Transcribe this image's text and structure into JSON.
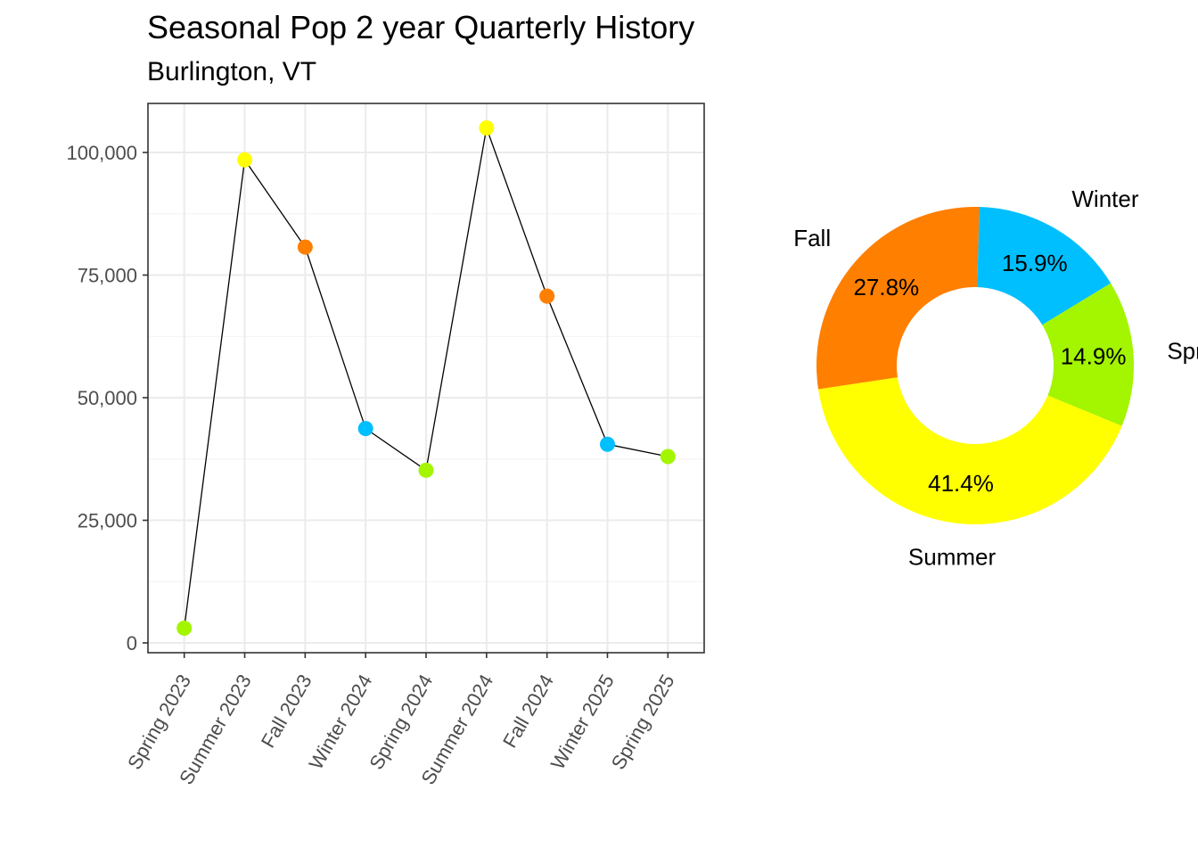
{
  "title": "Seasonal Pop 2 year Quarterly History",
  "subtitle": "Burlington, VT",
  "chart_data": [
    {
      "type": "line",
      "categories": [
        "Spring 2023",
        "Summer 2023",
        "Fall 2023",
        "Winter 2024",
        "Spring 2024",
        "Summer 2024",
        "Fall 2024",
        "Winter 2025",
        "Spring 2025"
      ],
      "values": [
        3000,
        98500,
        80700,
        43700,
        35200,
        105000,
        70700,
        40500,
        38000
      ],
      "point_seasons": [
        "Spring",
        "Summer",
        "Fall",
        "Winter",
        "Spring",
        "Summer",
        "Fall",
        "Winter",
        "Spring"
      ],
      "y_ticks": [
        0,
        25000,
        50000,
        75000,
        100000
      ],
      "y_tick_labels": [
        "0",
        "25,000",
        "50,000",
        "75,000",
        "100,000"
      ],
      "ylim": [
        -2000,
        110000
      ],
      "xlabel": "",
      "ylabel": "",
      "grid": true,
      "line_color": "#000000"
    },
    {
      "type": "pie",
      "donut": true,
      "slices": [
        {
          "label": "Winter",
          "percent": 15.9,
          "value_label": "15.9%"
        },
        {
          "label": "Spring",
          "percent": 14.9,
          "value_label": "14.9%"
        },
        {
          "label": "Summer",
          "percent": 41.4,
          "value_label": "41.4%"
        },
        {
          "label": "Fall",
          "percent": 27.8,
          "value_label": "27.8%"
        }
      ]
    }
  ],
  "season_colors": {
    "Spring": "#a3f500",
    "Summer": "#ffff00",
    "Fall": "#ff7f00",
    "Winter": "#00bfff"
  }
}
